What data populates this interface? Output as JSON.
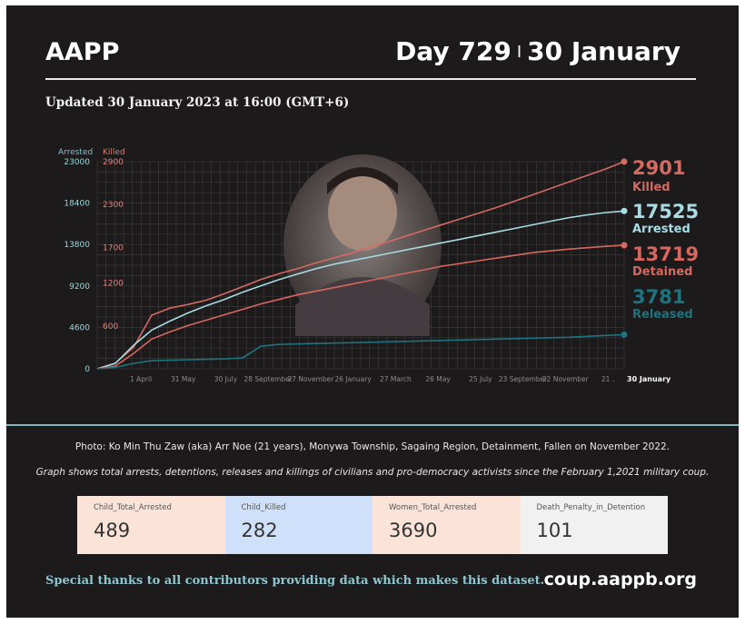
{
  "header": {
    "brand": "AAPP",
    "day": "Day 729",
    "separator": "I",
    "date": "30 January",
    "updated": "Updated 30 January 2023 at 16:00 (GMT+6)"
  },
  "chart_data": {
    "type": "line",
    "left_axis_title": "Arrested",
    "right_axis_title": "Killed",
    "left_ticks": [
      "0",
      "4600",
      "9200",
      "13800",
      "18400",
      "23000"
    ],
    "right_ticks": [
      "600",
      "1200",
      "1700",
      "2300",
      "2900"
    ],
    "x_ticks": [
      "1 April",
      "31 May",
      "30 July",
      "28 September",
      "27 November",
      "26 January",
      "27 March",
      "26 May",
      "25 July",
      "23 September",
      "22 November",
      "21 ."
    ],
    "x_end_label": "30 January",
    "arrested_ylim": [
      0,
      23000
    ],
    "killed_ylim": [
      0,
      2900
    ],
    "grid": true,
    "series": [
      {
        "name": "Killed",
        "label": "Killed",
        "value": "2901",
        "color": "#d46a62",
        "axis": "killed",
        "values": [
          0,
          80,
          300,
          750,
          850,
          900,
          960,
          1050,
          1150,
          1250,
          1330,
          1400,
          1480,
          1550,
          1620,
          1700,
          1780,
          1860,
          1940,
          2020,
          2100,
          2180,
          2260,
          2350,
          2440,
          2530,
          2620,
          2710,
          2800,
          2901
        ]
      },
      {
        "name": "Arrested",
        "label": "Arrested",
        "value": "17525",
        "color": "#a8dbe4",
        "axis": "arrested",
        "values": [
          0,
          600,
          2600,
          4300,
          5300,
          6200,
          7000,
          7700,
          8500,
          9200,
          9900,
          10500,
          11100,
          11600,
          12000,
          12400,
          12800,
          13200,
          13600,
          14000,
          14400,
          14800,
          15200,
          15600,
          16000,
          16400,
          16800,
          17100,
          17350,
          17525
        ]
      },
      {
        "name": "Detained",
        "label": "Detained",
        "value": "13719",
        "color": "#d8675f",
        "axis": "arrested",
        "values": [
          0,
          300,
          1700,
          3300,
          4100,
          4800,
          5400,
          6000,
          6600,
          7200,
          7700,
          8200,
          8600,
          9000,
          9400,
          9800,
          10200,
          10600,
          11000,
          11400,
          11700,
          12000,
          12300,
          12600,
          12900,
          13100,
          13300,
          13450,
          13600,
          13719
        ]
      },
      {
        "name": "Released",
        "label": "Released",
        "value": "3781",
        "color": "#1c747e",
        "axis": "arrested",
        "values": [
          0,
          150,
          600,
          900,
          950,
          1000,
          1050,
          1100,
          1200,
          2500,
          2700,
          2750,
          2800,
          2850,
          2900,
          2950,
          3000,
          3050,
          3100,
          3150,
          3200,
          3250,
          3300,
          3350,
          3400,
          3450,
          3500,
          3600,
          3700,
          3781
        ]
      }
    ]
  },
  "photo_caption": "Photo:  Ko Min Thu Zaw (aka) Arr Noe (21 years), Monywa Township, Sagaing Region, Detainment, Fallen on November 2022.",
  "graph_caption": "Graph shows total arrests, detentions, releases and killings of civilians and pro-democracy activists since the February 1,2021 military coup.",
  "stats": [
    {
      "label": "Child_Total_Arrested",
      "value": "489",
      "bg": "#fbe3d8"
    },
    {
      "label": "Child_Killed",
      "value": "282",
      "bg": "#cfe0fa"
    },
    {
      "label": "Women_Total_Arrested",
      "value": "3690",
      "bg": "#fbe3d8"
    },
    {
      "label": "Death_Penalty_in_Detention",
      "value": "101",
      "bg": "#f1f1f1"
    }
  ],
  "footer": {
    "thanks": "Special thanks to all contributors providing data which makes this dataset.",
    "site": "coup.aappb.org"
  }
}
